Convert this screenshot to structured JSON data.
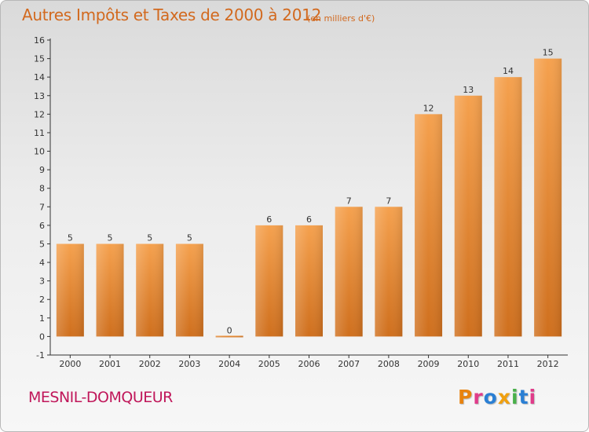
{
  "header": {
    "title": "Autres Impôts et Taxes de 2000 à 2012",
    "unit_note": "(en milliers d'€)"
  },
  "footer": {
    "commune": "MESNIL-DOMQUEUR",
    "logo": "Proxiti",
    "logo_colors": [
      "#e8830f",
      "#e03c8a",
      "#2a7fd4",
      "#f0a00f",
      "#49b04a",
      "#2a7fd4",
      "#e03c8a"
    ]
  },
  "colors": {
    "title": "#d2691e",
    "commune": "#c0175a",
    "bar_light": "#f5a14e",
    "bar_dark": "#cf6f1d",
    "axis": "#333333"
  },
  "chart_data": {
    "type": "bar",
    "categories": [
      "2000",
      "2001",
      "2002",
      "2003",
      "2004",
      "2005",
      "2006",
      "2007",
      "2008",
      "2009",
      "2010",
      "2011",
      "2012"
    ],
    "values": [
      5,
      5,
      5,
      5,
      0,
      6,
      6,
      7,
      7,
      12,
      13,
      14,
      15
    ],
    "data_labels": [
      "5",
      "5",
      "5",
      "5",
      "0",
      "6",
      "6",
      "7",
      "7",
      "12",
      "13",
      "14",
      "15"
    ],
    "yticks": [
      -1,
      0,
      1,
      2,
      3,
      4,
      5,
      6,
      7,
      8,
      9,
      10,
      11,
      12,
      13,
      14,
      15,
      16
    ],
    "ylim": [
      -1,
      16
    ],
    "grid": false
  }
}
